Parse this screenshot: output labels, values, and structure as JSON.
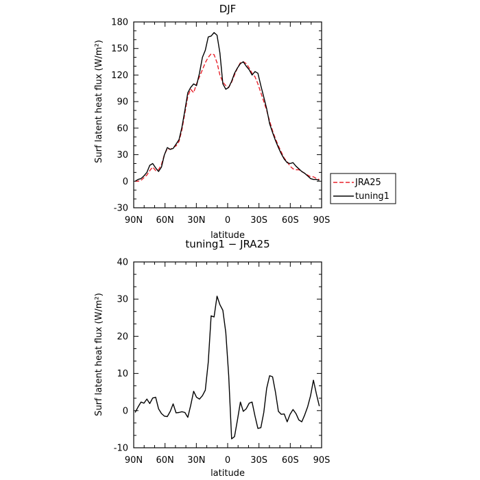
{
  "chart_data": [
    {
      "type": "line",
      "title": "DJF",
      "xlabel": "latitude",
      "ylabel": "Surf latent heat flux (W/m²)",
      "xlim": [
        90,
        -90
      ],
      "ylim": [
        -30,
        180
      ],
      "x_ticks": [
        90,
        60,
        30,
        0,
        -30,
        -60,
        -90
      ],
      "x_tick_labels": [
        "90N",
        "60N",
        "30N",
        "0",
        "30S",
        "60S",
        "90S"
      ],
      "y_ticks": [
        -30,
        0,
        30,
        60,
        90,
        120,
        150,
        180
      ],
      "y_tick_labels": [
        "-30",
        "0",
        "30",
        "60",
        "90",
        "120",
        "150",
        "180"
      ],
      "legend_position": "right, outside plot area",
      "x": [
        88.6,
        85.8,
        83.0,
        80.2,
        77.4,
        74.6,
        71.8,
        69.0,
        66.2,
        63.4,
        60.6,
        57.8,
        55.0,
        52.2,
        49.4,
        46.6,
        43.8,
        41.0,
        38.2,
        35.4,
        32.6,
        29.8,
        27.0,
        24.2,
        21.4,
        18.6,
        15.8,
        13.0,
        10.2,
        7.4,
        4.6,
        1.8,
        -1.0,
        -3.8,
        -6.6,
        -9.4,
        -12.2,
        -15.0,
        -17.8,
        -20.6,
        -23.4,
        -26.2,
        -29.0,
        -31.8,
        -34.6,
        -37.4,
        -40.2,
        -43.0,
        -45.8,
        -48.6,
        -51.4,
        -54.2,
        -57.0,
        -59.8,
        -62.6,
        -65.4,
        -68.2,
        -71.0,
        -73.8,
        -76.6,
        -79.4,
        -82.2,
        -85.0,
        -87.8
      ],
      "series": [
        {
          "name": "JRA25",
          "color": "#e8202a",
          "dash": "dashed",
          "values": [
            0,
            0,
            1,
            4,
            7,
            12,
            16,
            12,
            13,
            19,
            30,
            37,
            36,
            38,
            40,
            45,
            58,
            77,
            96,
            104,
            100,
            110,
            118,
            126,
            134,
            140,
            144,
            143,
            134,
            120,
            112,
            108,
            106,
            112,
            120,
            128,
            134,
            135,
            133,
            128,
            122,
            118,
            110,
            100,
            90,
            80,
            68,
            57,
            48,
            40,
            33,
            26,
            22,
            17,
            14,
            13,
            13,
            11,
            9,
            7,
            5,
            5,
            3,
            2
          ]
        },
        {
          "name": "tuning1",
          "color": "#000000",
          "dash": "solid",
          "values": [
            0,
            2,
            3,
            6,
            10,
            18,
            20,
            15,
            11,
            16,
            30,
            38,
            36,
            37,
            42,
            47,
            61,
            80,
            100,
            106,
            110,
            108,
            122,
            140,
            148,
            163,
            164,
            168,
            165,
            145,
            110,
            104,
            106,
            113,
            122,
            128,
            133,
            135,
            130,
            126,
            120,
            124,
            122,
            108,
            95,
            82,
            65,
            55,
            46,
            38,
            31,
            25,
            21,
            20,
            21,
            17,
            14,
            11,
            9,
            6,
            3,
            2,
            2,
            1
          ]
        }
      ]
    },
    {
      "type": "line",
      "title": "tuning1 − JRA25",
      "xlabel": "latitude",
      "ylabel": "Surf latent heat flux (W/m²)",
      "xlim": [
        90,
        -90
      ],
      "ylim": [
        -10,
        40
      ],
      "x_ticks": [
        90,
        60,
        30,
        0,
        -30,
        -60,
        -90
      ],
      "x_tick_labels": [
        "90N",
        "60N",
        "30N",
        "0",
        "30S",
        "60S",
        "90S"
      ],
      "y_ticks": [
        -10,
        0,
        10,
        20,
        30,
        40
      ],
      "y_tick_labels": [
        "-10",
        "0",
        "10",
        "20",
        "30",
        "40"
      ],
      "x": [
        88.6,
        85.8,
        83.0,
        80.2,
        77.4,
        74.6,
        71.8,
        69.0,
        66.2,
        63.4,
        60.6,
        57.8,
        55.0,
        52.2,
        49.4,
        46.6,
        43.8,
        41.0,
        38.2,
        35.4,
        32.6,
        29.8,
        27.0,
        24.2,
        21.4,
        18.6,
        15.8,
        13.0,
        10.2,
        7.4,
        4.6,
        1.8,
        -1.0,
        -3.8,
        -6.6,
        -9.4,
        -12.2,
        -15.0,
        -17.8,
        -20.6,
        -23.4,
        -26.2,
        -29.0,
        -31.8,
        -34.6,
        -37.4,
        -40.2,
        -43.0,
        -45.8,
        -48.6,
        -51.4,
        -54.2,
        -57.0,
        -59.8,
        -62.6,
        -65.4,
        -68.2,
        -71.0,
        -73.8,
        -76.6,
        -79.4,
        -82.2,
        -85.0,
        -87.8
      ],
      "series": [
        {
          "color": "#000000",
          "values": [
            -0.5,
            1.0,
            2.3,
            2.0,
            3.1,
            1.9,
            3.4,
            3.6,
            0.5,
            -0.8,
            -1.5,
            -1.6,
            -0.2,
            1.8,
            -0.6,
            -0.5,
            -0.3,
            -0.5,
            -1.8,
            1.4,
            5.2,
            3.6,
            3.1,
            4.0,
            5.5,
            13.0,
            25.5,
            25.2,
            30.8,
            28.5,
            27.0,
            21.0,
            9.5,
            -7.6,
            -7.0,
            -2.5,
            2.3,
            -0.2,
            0.5,
            2.0,
            2.3,
            -1.5,
            -4.8,
            -4.6,
            -0.5,
            6.0,
            9.4,
            9.1,
            5.0,
            -0.2,
            -1.0,
            -0.9,
            -3.0,
            -1.0,
            0.3,
            -0.8,
            -2.5,
            -3.0,
            -1.2,
            1.0,
            4.0,
            8.2,
            4.5,
            1.2
          ]
        }
      ]
    }
  ]
}
